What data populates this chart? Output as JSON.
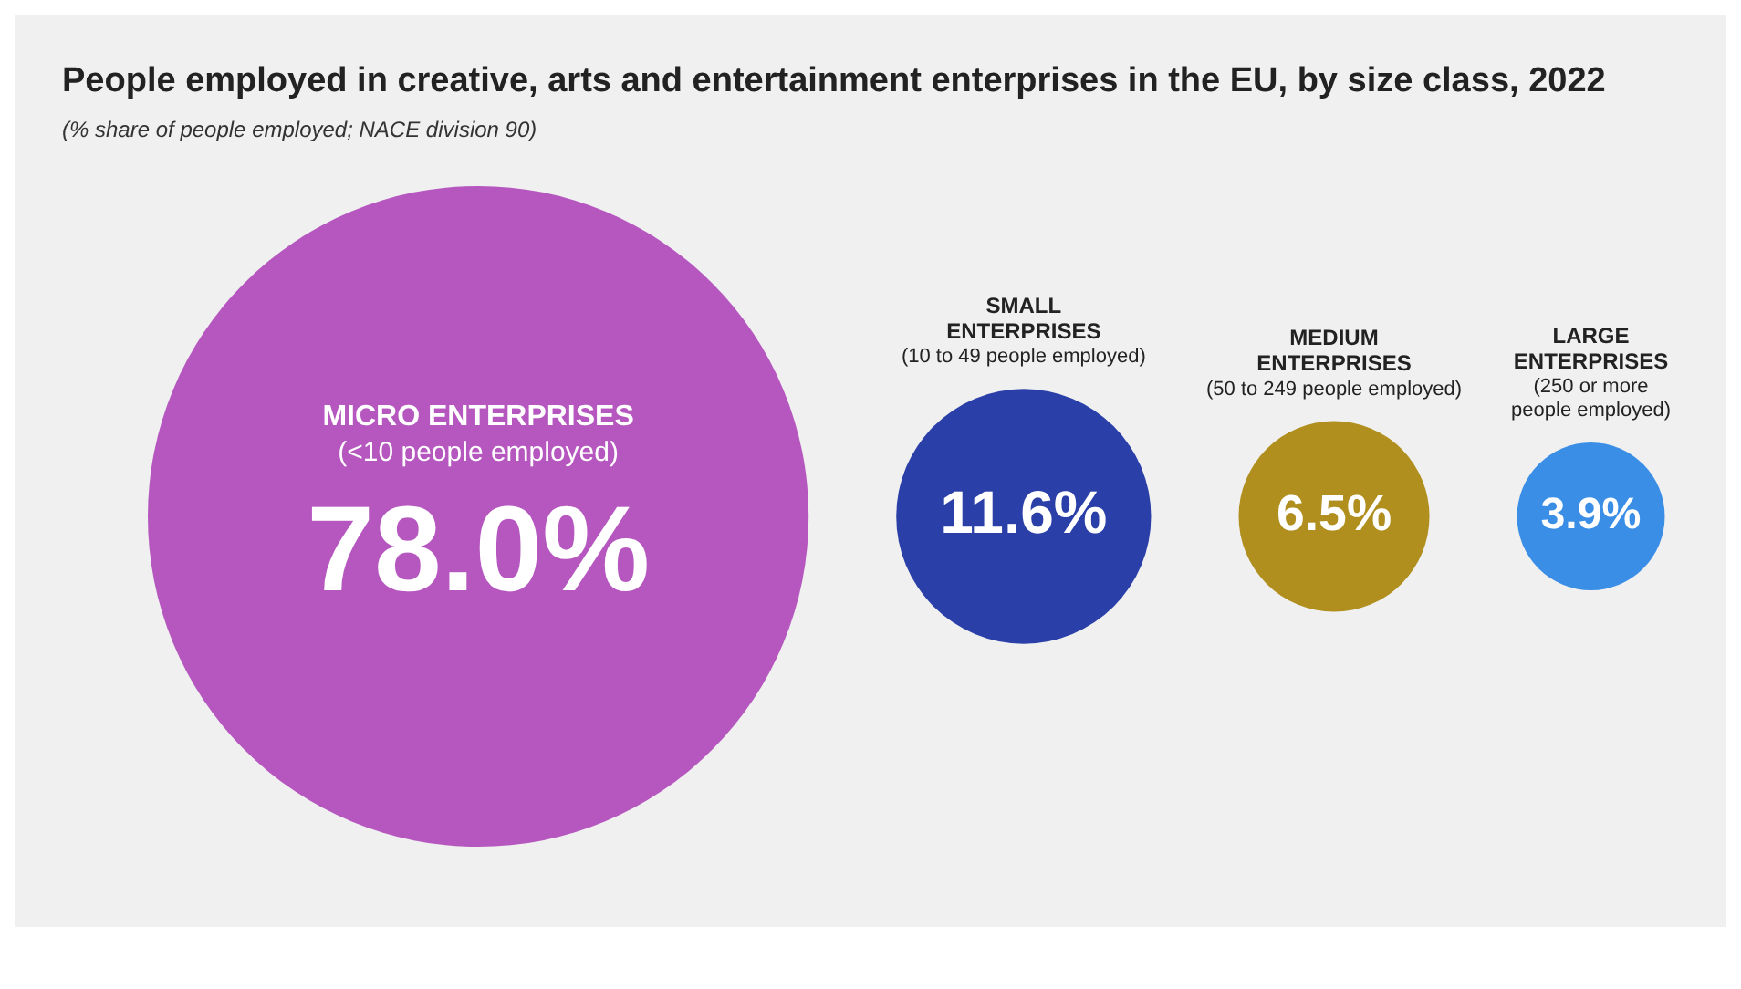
{
  "chart_data": {
    "type": "other",
    "title": "People employed in creative, arts and entertainment enterprises in the EU, by size class, 2022",
    "subtitle": "(% share of people employed; NACE division 90)",
    "categories": [
      "MICRO ENTERPRISES\n(<10 people employed)",
      "SMALL\nENTERPRISES\n(10 to 49 people employed)",
      "MEDIUM\nENTERPRISES\n(50 to 249 people employed)",
      "LARGE\nENTERPRISES\n(250 or more\npeople employed)"
    ],
    "values": [
      78.0,
      11.6,
      6.5,
      3.9
    ],
    "colors": [
      "#b557bf",
      "#2a3fa8",
      "#b08f1e",
      "#3a8ee6"
    ],
    "value_labels": [
      "78.0%",
      "11.6%",
      "6.5%",
      "3.9%"
    ]
  }
}
